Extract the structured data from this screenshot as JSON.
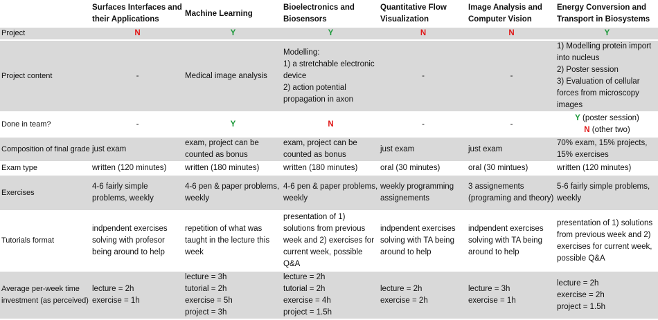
{
  "columns": [
    "Surfaces Interfaces and their Applications",
    "Machine Learning",
    "Bioelectronics and Biosensors",
    "Quantitative Flow Visualization",
    "Image Analysis and Computer Vision",
    "Energy Conversion and Transport in Biosystems"
  ],
  "rows": {
    "project": {
      "label": "Project",
      "values": [
        "N",
        "Y",
        "Y",
        "N",
        "N",
        "Y"
      ]
    },
    "project_content": {
      "label": "Project content",
      "values": [
        "-",
        "Medical image analysis",
        "Modelling:\n1)  a stretchable electronic device\n2) action potential propagation in axon",
        "-",
        "-",
        "1) Modelling protein import into nucleus\n2) Poster session\n3) Evaluation of cellular forces from microscopy images"
      ]
    },
    "team": {
      "label": "Done in team?",
      "values": [
        "-",
        "Y",
        "N",
        "-",
        "-"
      ],
      "last": {
        "y_mark": "Y",
        "y_text": " (poster session)",
        "n_mark": "N",
        "n_text": " (other two)"
      }
    },
    "composition": {
      "label": "Composition of final grade",
      "values": [
        "just exam",
        "exam, project can be counted as bonus",
        "exam, project can be counted as bonus",
        "just exam",
        "just exam",
        "70% exam, 15% projects, 15% exercises"
      ]
    },
    "exam_type": {
      "label": "Exam type",
      "values": [
        "written (120 minutes)",
        "written (180 minutes)",
        "written (180 minutes)",
        "oral (30 minutes)",
        "oral (30 mintues)",
        "written (120 minutes)"
      ]
    },
    "exercises": {
      "label": "Exercises",
      "values": [
        "4-6 fairly simple problems, weekly",
        "4-6 pen & paper problems, weekly",
        "4-6 pen & paper problems, weekly",
        "weekly programming assignements",
        "3 assignements (programing and theory)",
        "5-6 fairly simple problems, weekly"
      ]
    },
    "tutorials": {
      "label": "Tutorials format",
      "values": [
        "indpendent exercises solving with profesor being around to help",
        "repetition of what was taught in the lecture this week",
        "presentation of 1) solutions from previous week and 2) exercises for current week, possible Q&A",
        "indpendent exercises solving with TA being around to help",
        "indpendent exercises solving with TA being around to help",
        "presentation of 1) solutions from previous week and 2) exercises for current week, possible Q&A"
      ]
    },
    "time": {
      "label": "Average per-week time investment (as perceived)",
      "values": [
        "lecture = 2h\nexercise = 1h",
        "lecture = 3h\ntutorial = 2h\nexercise = 5h\nproject = 3h",
        "lecture = 2h\ntutorial = 2h\nexercise = 4h\nproject = 1.5h",
        "lecture = 2h\nexercise = 2h",
        "lecture = 3h\nexercise = 1h",
        "lecture = 2h\nexercise = 2h\nproject = 1.5h"
      ]
    }
  },
  "colors": {
    "yes": "#1e9a3c",
    "no": "#e01818",
    "gray_row": "#d9d9d9"
  }
}
